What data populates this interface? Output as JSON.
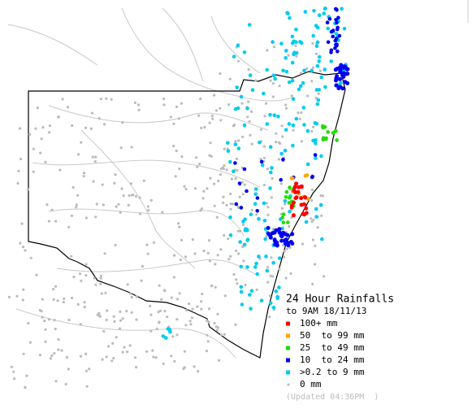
{
  "map": {
    "title": "24 Hour Rainfalls",
    "subtitle": "to 9AM 18/11/13",
    "legend": [
      {
        "label": "100+ mm",
        "color": "#ff0000"
      },
      {
        "label": "50  to 99 mm",
        "color": "#ffa500"
      },
      {
        "label": "25  to 49 mm",
        "color": "#22dd00"
      },
      {
        "label": "10  to 24 mm",
        "color": "#0000ee"
      },
      {
        "label": ">0.2 to 9 mm",
        "color": "#00ccee"
      },
      {
        "label": "0 mm",
        "color": "#bbbbbb"
      }
    ],
    "updated": "(Updated 04:36PM  )"
  }
}
